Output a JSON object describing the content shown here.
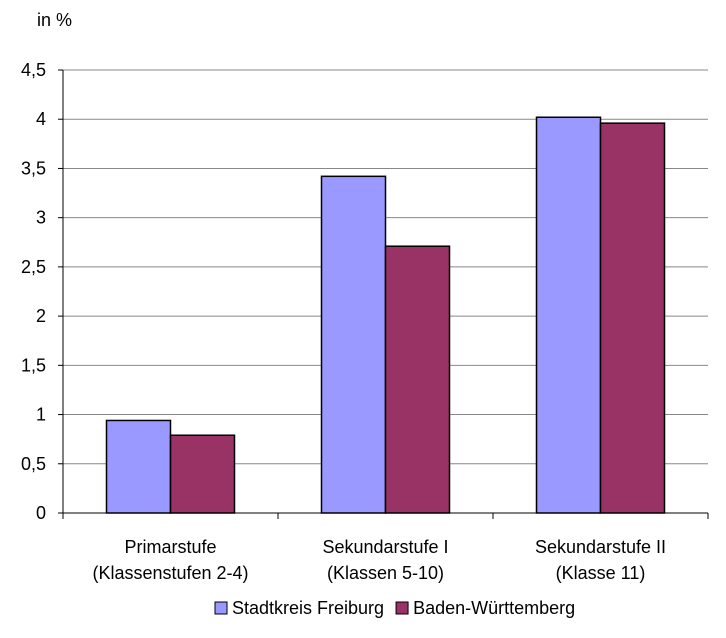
{
  "chart_data": {
    "type": "bar",
    "ylabel": "in %",
    "ylim": [
      0,
      4.5
    ],
    "ytick_step": 0.5,
    "yticks": [
      "0",
      "0,5",
      "1",
      "1,5",
      "2",
      "2,5",
      "3",
      "3,5",
      "4",
      "4,5"
    ],
    "grid": true,
    "legend_position": "bottom",
    "categories": [
      [
        "Primarstufe",
        "(Klassenstufen 2-4)"
      ],
      [
        "Sekundarstufe I",
        "(Klassen 5-10)"
      ],
      [
        "Sekundarstufe II",
        "(Klasse 11)"
      ]
    ],
    "series": [
      {
        "name": "Stadtkreis Freiburg",
        "color": "#9999FF",
        "values": [
          0.94,
          3.42,
          4.02
        ]
      },
      {
        "name": "Baden-Württemberg",
        "color": "#993366",
        "values": [
          0.79,
          2.71,
          3.96
        ]
      }
    ]
  }
}
